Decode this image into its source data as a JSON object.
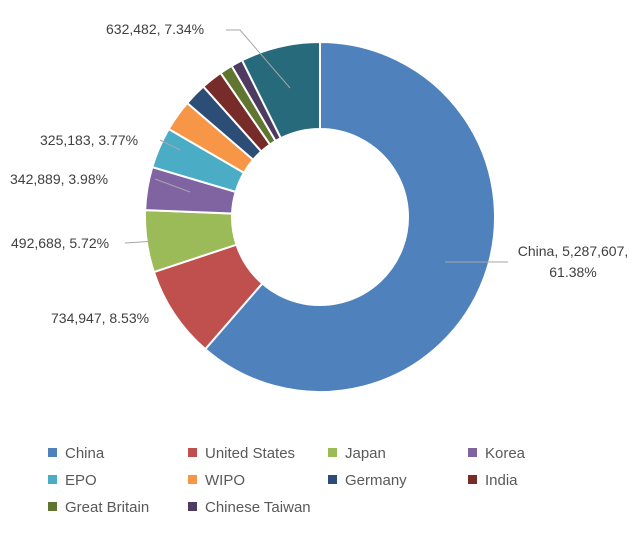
{
  "chart_data": {
    "type": "donut",
    "categories": [
      "China",
      "United States",
      "Japan",
      "Korea",
      "EPO",
      "WIPO",
      "Germany",
      "India",
      "Great Britain",
      "Chinese Taiwan",
      null
    ],
    "values": [
      5287607,
      734947,
      492688,
      342889,
      325183,
      250000,
      181000,
      172000,
      103000,
      93000,
      632482
    ],
    "value_labels": [
      "China, 5,287,607, 61.38%",
      "734,947, 8.53%",
      "492,688, 5.72%",
      "342,889, 3.98%",
      "325,183, 3.77%",
      null,
      null,
      null,
      null,
      null,
      "632,482, 7.34%"
    ],
    "colors": [
      "#4f81bd",
      "#c0504d",
      "#9bbb59",
      "#8064a2",
      "#4bacc6",
      "#f79646",
      "#2c4d75",
      "#772c2a",
      "#5f7530",
      "#4d3b62",
      "#276a7c"
    ],
    "legend": "bottom"
  }
}
